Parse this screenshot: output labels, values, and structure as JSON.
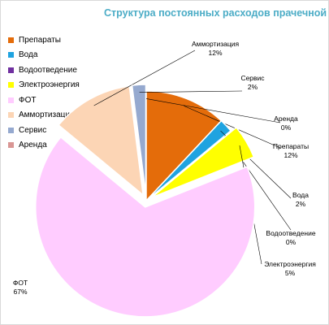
{
  "chart_data": {
    "type": "pie",
    "title": "Структура постоянных расходов прачечной",
    "legend_position": "left",
    "slices": [
      {
        "name": "Препараты",
        "value": 12,
        "label": "12%",
        "color": "#e46c0a",
        "exploded": false
      },
      {
        "name": "Вода",
        "value": 2,
        "label": "2%",
        "color": "#1fa3e0",
        "exploded": false
      },
      {
        "name": "Водоотведение",
        "value": 0,
        "label": "0%",
        "color": "#7030a0",
        "exploded": false
      },
      {
        "name": "Электроэнергия",
        "value": 5,
        "label": "5%",
        "color": "#ffff00",
        "exploded": true
      },
      {
        "name": "ФОТ",
        "value": 67,
        "label": "67%",
        "color": "#ffccff",
        "exploded": true
      },
      {
        "name": "Аммортизация",
        "value": 12,
        "label": "12%",
        "color": "#fcd5b5",
        "exploded": true
      },
      {
        "name": "Сервис",
        "value": 2,
        "label": "2%",
        "color": "#95a9cf",
        "exploded": true
      },
      {
        "name": "Аренда",
        "value": 0,
        "label": "0%",
        "color": "#d99694",
        "exploded": false
      }
    ]
  }
}
